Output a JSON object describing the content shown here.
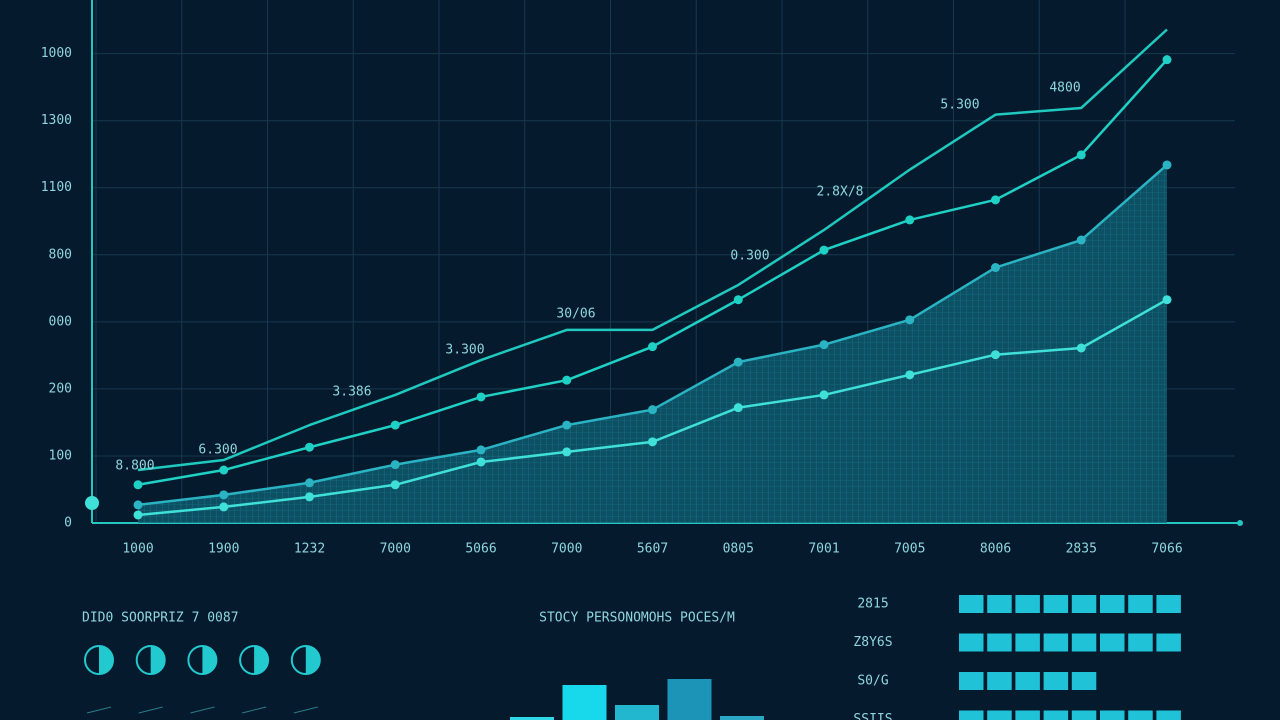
{
  "chart_data": [
    {
      "type": "line",
      "categories": [
        "1000",
        "1900",
        "1232",
        "7000",
        "5066",
        "7000",
        "5607",
        "0805",
        "7001",
        "7005",
        "8006",
        "2835",
        "7066"
      ],
      "ylim": [
        0,
        780
      ],
      "yticks": [
        0,
        100,
        200,
        {
          "value": 300,
          "label": "000"
        },
        {
          "value": 400,
          "label": "800"
        },
        {
          "value": 500,
          "label": "1100"
        },
        {
          "value": 600,
          "label": "1300"
        },
        {
          "value": 700,
          "label": "1000"
        }
      ],
      "grid": true,
      "series": [
        {
          "color": "#1fc9bf",
          "markers": false,
          "area": false,
          "values": [
            79,
            94,
            146,
            191,
            243,
            288,
            288,
            355,
            437,
            527,
            609,
            619,
            736
          ]
        },
        {
          "color": "#1fd0c4",
          "markers": true,
          "area": false,
          "values": [
            57,
            79,
            113,
            146,
            188,
            213,
            263,
            333,
            407,
            452,
            482,
            549,
            691
          ]
        },
        {
          "color": "#2ab3c2",
          "markers": true,
          "area": true,
          "values": [
            27,
            42,
            60,
            87,
            109,
            146,
            169,
            240,
            266,
            303,
            381,
            422,
            534
          ]
        },
        {
          "color": "#3fe0d8",
          "markers": true,
          "area": false,
          "values": [
            12,
            24,
            39,
            57,
            91,
            106,
            121,
            172,
            191,
            221,
            251,
            261,
            333
          ]
        }
      ],
      "annotations": [
        "8.800",
        "6.300",
        "3.386",
        "3.300",
        "30/06",
        "0.300",
        "2.8X/8",
        "5.300",
        "4800"
      ]
    },
    {
      "type": "gauge",
      "title": "DID0 SOORPRIZ 7 0087",
      "color": "#22c9cf",
      "values": [
        50,
        50,
        50,
        50,
        50
      ]
    },
    {
      "type": "bar",
      "title": "STOCY PERSONOMOHS POCES/M",
      "colors": [
        "#2fd6e6",
        "#18d9ec",
        "#22b6cf",
        "#1b94b8",
        "#2aa7c4"
      ],
      "values": [
        3,
        35,
        15,
        41,
        4
      ]
    },
    {
      "type": "segments",
      "color": "#20c2d8",
      "categories": [
        "2815",
        "Z8Y6S",
        "S0/G",
        "SSIIS"
      ],
      "values": [
        8,
        8,
        5,
        8
      ]
    }
  ]
}
